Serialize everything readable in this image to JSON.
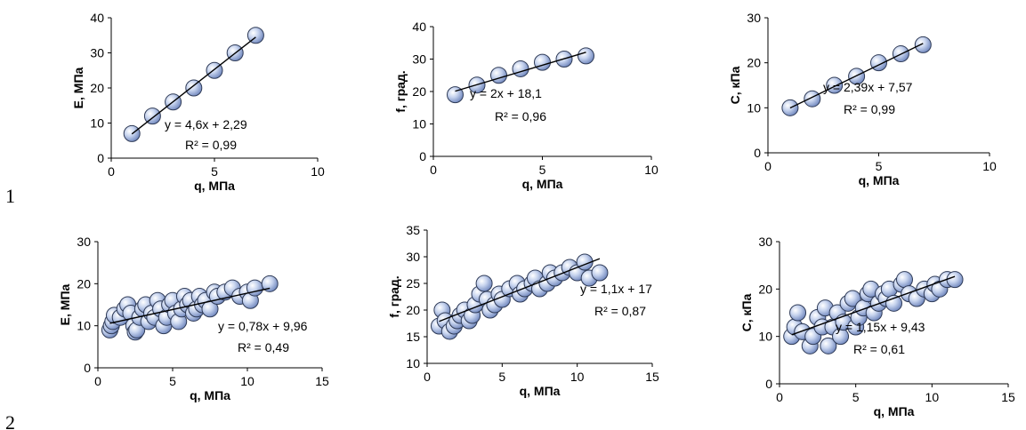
{
  "row_labels": [
    "1",
    "2"
  ],
  "chart_data": [
    {
      "type": "scatter",
      "title": "",
      "xlabel": "q, МПа",
      "ylabel": "E, МПа",
      "xlim": [
        0,
        10
      ],
      "ylim": [
        0,
        40
      ],
      "xticks": [
        0,
        5,
        10
      ],
      "yticks": [
        0,
        10,
        20,
        30,
        40
      ],
      "points": [
        [
          1,
          7
        ],
        [
          2,
          12
        ],
        [
          3,
          16
        ],
        [
          4,
          20
        ],
        [
          5,
          25
        ],
        [
          6,
          30
        ],
        [
          7,
          35
        ]
      ],
      "trendline": {
        "slope": 4.6,
        "intercept": 2.29,
        "x_range": [
          1,
          7
        ]
      },
      "equation": "y = 4,6x + 2,29",
      "r2": "R² = 0,99",
      "grid": false
    },
    {
      "type": "scatter",
      "title": "",
      "xlabel": "q, МПа",
      "ylabel": "f, град.",
      "xlim": [
        0,
        10
      ],
      "ylim": [
        0,
        40
      ],
      "xticks": [
        0,
        5,
        10
      ],
      "yticks": [
        0,
        10,
        20,
        30,
        40
      ],
      "points": [
        [
          1,
          19
        ],
        [
          2,
          22
        ],
        [
          3,
          25
        ],
        [
          4,
          27
        ],
        [
          5,
          29
        ],
        [
          6,
          30
        ],
        [
          7,
          31
        ]
      ],
      "trendline": {
        "slope": 2,
        "intercept": 18.1,
        "x_range": [
          1,
          7
        ]
      },
      "equation": "y = 2x + 18,1",
      "r2": "R² = 0,96",
      "grid": false
    },
    {
      "type": "scatter",
      "title": "",
      "xlabel": "q, МПа",
      "ylabel": "C, кПа",
      "xlim": [
        0,
        10
      ],
      "ylim": [
        0,
        30
      ],
      "xticks": [
        0,
        5,
        10
      ],
      "yticks": [
        0,
        10,
        20,
        30
      ],
      "points": [
        [
          1,
          10
        ],
        [
          2,
          12
        ],
        [
          3,
          15
        ],
        [
          4,
          17
        ],
        [
          5,
          20
        ],
        [
          6,
          22
        ],
        [
          7,
          24
        ]
      ],
      "trendline": {
        "slope": 2.39,
        "intercept": 7.57,
        "x_range": [
          1,
          7
        ]
      },
      "equation": "y = 2,39x + 7,57",
      "r2": "R² = 0,99",
      "grid": false
    },
    {
      "type": "scatter",
      "title": "",
      "xlabel": "q, МПа",
      "ylabel": "E, МПа",
      "xlim": [
        0,
        15
      ],
      "ylim": [
        0,
        30
      ],
      "xticks": [
        0,
        5,
        10,
        15
      ],
      "yticks": [
        0,
        10,
        20,
        30
      ],
      "points": [
        [
          0.8,
          9
        ],
        [
          0.9,
          10
        ],
        [
          1,
          11
        ],
        [
          1.1,
          12.5
        ],
        [
          1.5,
          12
        ],
        [
          1.8,
          14
        ],
        [
          2,
          15
        ],
        [
          2.2,
          13
        ],
        [
          2.4,
          10
        ],
        [
          2.5,
          8.5
        ],
        [
          2.6,
          9
        ],
        [
          2.8,
          12
        ],
        [
          3,
          14
        ],
        [
          3.2,
          15
        ],
        [
          3.4,
          11
        ],
        [
          3.6,
          13
        ],
        [
          3.8,
          12
        ],
        [
          4,
          16
        ],
        [
          4.2,
          14
        ],
        [
          4.4,
          10
        ],
        [
          4.6,
          12
        ],
        [
          4.8,
          15
        ],
        [
          5,
          16
        ],
        [
          5.2,
          13
        ],
        [
          5.4,
          11
        ],
        [
          5.6,
          14
        ],
        [
          5.8,
          17
        ],
        [
          6,
          15
        ],
        [
          6.2,
          16
        ],
        [
          6.4,
          13
        ],
        [
          6.6,
          14
        ],
        [
          6.8,
          17
        ],
        [
          7,
          15
        ],
        [
          7.2,
          16
        ],
        [
          7.5,
          14
        ],
        [
          7.8,
          18
        ],
        [
          8,
          17
        ],
        [
          8.5,
          18
        ],
        [
          9,
          19
        ],
        [
          9.5,
          17
        ],
        [
          10,
          18
        ],
        [
          10.2,
          16
        ],
        [
          10.5,
          19
        ],
        [
          11.5,
          20
        ]
      ],
      "trendline": {
        "slope": 0.78,
        "intercept": 9.96,
        "x_range": [
          0.8,
          11.5
        ]
      },
      "equation": "y = 0,78x + 9,96",
      "r2": "R² = 0,49",
      "grid": false
    },
    {
      "type": "scatter",
      "title": "",
      "xlabel": "q, МПа",
      "ylabel": "f, град.",
      "xlim": [
        0,
        15
      ],
      "ylim": [
        10,
        35
      ],
      "xticks": [
        0,
        5,
        10,
        15
      ],
      "yticks": [
        10,
        15,
        20,
        25,
        30,
        35
      ],
      "points": [
        [
          0.8,
          17
        ],
        [
          1,
          20
        ],
        [
          1.2,
          18
        ],
        [
          1.5,
          16
        ],
        [
          1.8,
          17
        ],
        [
          2,
          18
        ],
        [
          2.2,
          19
        ],
        [
          2.5,
          20
        ],
        [
          2.8,
          18
        ],
        [
          3,
          19
        ],
        [
          3.2,
          21
        ],
        [
          3.5,
          23
        ],
        [
          3.8,
          25
        ],
        [
          4,
          22
        ],
        [
          4.2,
          20
        ],
        [
          4.5,
          21
        ],
        [
          4.8,
          23
        ],
        [
          5,
          22
        ],
        [
          5.5,
          24
        ],
        [
          6,
          25
        ],
        [
          6.2,
          23
        ],
        [
          6.5,
          24
        ],
        [
          7,
          25
        ],
        [
          7.2,
          26
        ],
        [
          7.5,
          24
        ],
        [
          8,
          25
        ],
        [
          8.2,
          27
        ],
        [
          8.5,
          26
        ],
        [
          9,
          27
        ],
        [
          9.5,
          28
        ],
        [
          10,
          27
        ],
        [
          10.5,
          29
        ],
        [
          10.8,
          26
        ],
        [
          11.5,
          27
        ]
      ],
      "trendline": {
        "slope": 1.1,
        "intercept": 17,
        "x_range": [
          0.8,
          11.5
        ]
      },
      "equation": "y = 1,1x + 17",
      "r2": "R² = 0,87",
      "grid": false
    },
    {
      "type": "scatter",
      "title": "",
      "xlabel": "q, МПа",
      "ylabel": "C, кПа",
      "xlim": [
        0,
        15
      ],
      "ylim": [
        0,
        30
      ],
      "xticks": [
        0,
        5,
        10,
        15
      ],
      "yticks": [
        0,
        10,
        20,
        30
      ],
      "points": [
        [
          0.8,
          10
        ],
        [
          1,
          12
        ],
        [
          1.2,
          15
        ],
        [
          1.5,
          11
        ],
        [
          2,
          8
        ],
        [
          2.2,
          10
        ],
        [
          2.5,
          14
        ],
        [
          2.8,
          12
        ],
        [
          3,
          16
        ],
        [
          3.2,
          8
        ],
        [
          3.5,
          12
        ],
        [
          3.8,
          15
        ],
        [
          4,
          10
        ],
        [
          4.2,
          13
        ],
        [
          4.5,
          17
        ],
        [
          4.8,
          18
        ],
        [
          5,
          12
        ],
        [
          5.2,
          14
        ],
        [
          5.5,
          16
        ],
        [
          5.8,
          19
        ],
        [
          6,
          20
        ],
        [
          6.2,
          15
        ],
        [
          6.5,
          17
        ],
        [
          6.8,
          19
        ],
        [
          7,
          18
        ],
        [
          7.2,
          20
        ],
        [
          7.5,
          17
        ],
        [
          8,
          21
        ],
        [
          8.2,
          22
        ],
        [
          8.5,
          19
        ],
        [
          9,
          18
        ],
        [
          9.5,
          20
        ],
        [
          10,
          19
        ],
        [
          10.2,
          21
        ],
        [
          10.5,
          20
        ],
        [
          11,
          22
        ],
        [
          11.5,
          22
        ]
      ],
      "trendline": {
        "slope": 1.15,
        "intercept": 9.43,
        "x_range": [
          0.8,
          11.5
        ]
      },
      "equation": "y = 1,15x + 9,43",
      "r2": "R² = 0,61",
      "grid": false
    }
  ]
}
